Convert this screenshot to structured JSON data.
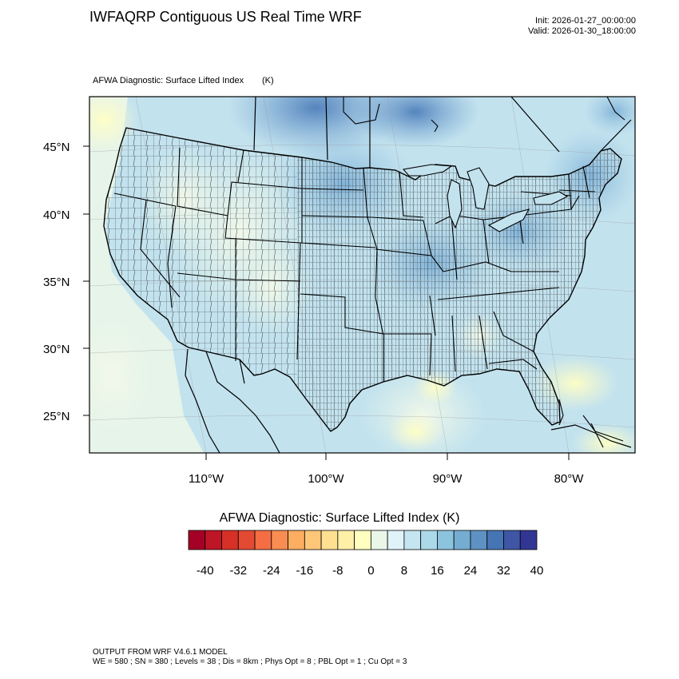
{
  "header": {
    "title": "IWFAQRP Contiguous US Real Time WRF",
    "init": "Init: 2026-01-27_00:00:00",
    "valid": "Valid: 2026-01-30_18:00:00"
  },
  "map": {
    "subtitle": "AFWA Diagnostic: Surface Lifted Index",
    "units": "(K)",
    "lat_labels": [
      "45°N",
      "40°N",
      "35°N",
      "30°N",
      "25°N"
    ],
    "lon_labels": [
      "110°W",
      "100°W",
      "90°W",
      "80°W"
    ]
  },
  "colorbar": {
    "title": "AFWA Diagnostic: Surface Lifted Index  (K)",
    "ticks": [
      "-40",
      "-32",
      "-24",
      "-16",
      "-8",
      "0",
      "8",
      "16",
      "24",
      "32",
      "40"
    ],
    "colors": [
      "#a50026",
      "#be1527",
      "#d73027",
      "#e34a33",
      "#f46d43",
      "#f88d52",
      "#fdae61",
      "#fdc777",
      "#fee090",
      "#fff0a8",
      "#ffffbf",
      "#e9f6e8",
      "#e0f3f8",
      "#c5e5f0",
      "#abd9e9",
      "#8cc4de",
      "#74add1",
      "#5e92c3",
      "#4575b4",
      "#3e56a5",
      "#313695"
    ]
  },
  "footer": {
    "line1": "OUTPUT FROM WRF V4.6.1 MODEL",
    "line2": "WE = 580 ; SN = 380 ; Levels = 38 ; Dis = 8km ; Phys Opt = 8 ; PBL Opt = 1 ; Cu Opt = 3"
  }
}
